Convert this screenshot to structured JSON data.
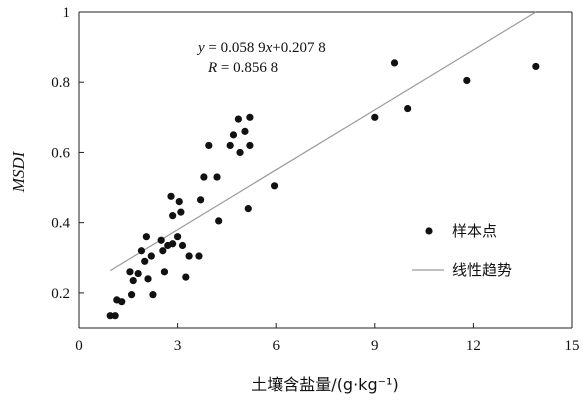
{
  "chart_data": {
    "type": "scatter",
    "title": "",
    "xlabel": "土壤含盐量/(g·kg⁻¹)",
    "ylabel": "MSDI",
    "xlim": [
      0,
      15
    ],
    "ylim": [
      0.1,
      1.0
    ],
    "x_ticks": [
      0,
      3,
      6,
      9,
      12,
      15
    ],
    "y_ticks": [
      0.2,
      0.4,
      0.6,
      0.8,
      1.0
    ],
    "x_tick_labels": [
      "0",
      "3",
      "6",
      "9",
      "12",
      "15"
    ],
    "y_tick_labels": [
      "0.2",
      "0.4",
      "0.6",
      "0.8",
      "1"
    ],
    "grid": false,
    "legend_position": "right",
    "series": [
      {
        "name": "样本点",
        "type": "scatter",
        "color": "#111111",
        "x": [
          0.95,
          1.1,
          1.15,
          1.3,
          1.55,
          1.6,
          1.65,
          1.8,
          1.9,
          2.0,
          2.05,
          2.1,
          2.2,
          2.25,
          2.5,
          2.55,
          2.6,
          2.7,
          2.8,
          2.85,
          2.85,
          3.0,
          3.05,
          3.1,
          3.15,
          3.25,
          3.35,
          3.65,
          3.7,
          3.8,
          3.95,
          4.2,
          4.25,
          4.6,
          4.7,
          4.85,
          4.9,
          5.05,
          5.15,
          5.2,
          5.2,
          5.95,
          9.0,
          9.6,
          10.0,
          11.8,
          13.9
        ],
        "y": [
          0.135,
          0.135,
          0.18,
          0.175,
          0.26,
          0.195,
          0.235,
          0.255,
          0.32,
          0.29,
          0.36,
          0.24,
          0.305,
          0.195,
          0.35,
          0.32,
          0.26,
          0.335,
          0.475,
          0.42,
          0.34,
          0.36,
          0.46,
          0.43,
          0.335,
          0.245,
          0.305,
          0.305,
          0.465,
          0.53,
          0.62,
          0.53,
          0.405,
          0.62,
          0.65,
          0.695,
          0.6,
          0.66,
          0.44,
          0.7,
          0.62,
          0.505,
          0.7,
          0.855,
          0.725,
          0.805,
          0.845
        ]
      },
      {
        "name": "线性趋势",
        "type": "line",
        "color": "#9a9a9a",
        "x": [
          0.95,
          13.9
        ],
        "y": [
          0.2634,
          1.0
        ]
      }
    ],
    "annotations": {
      "equation_y_var": "y",
      "equation_rest": " = 0.058 9",
      "equation_x_var": "x",
      "equation_tail": "+0.207 8",
      "r_var": "R",
      "r_rest": " = 0.856 8"
    }
  }
}
